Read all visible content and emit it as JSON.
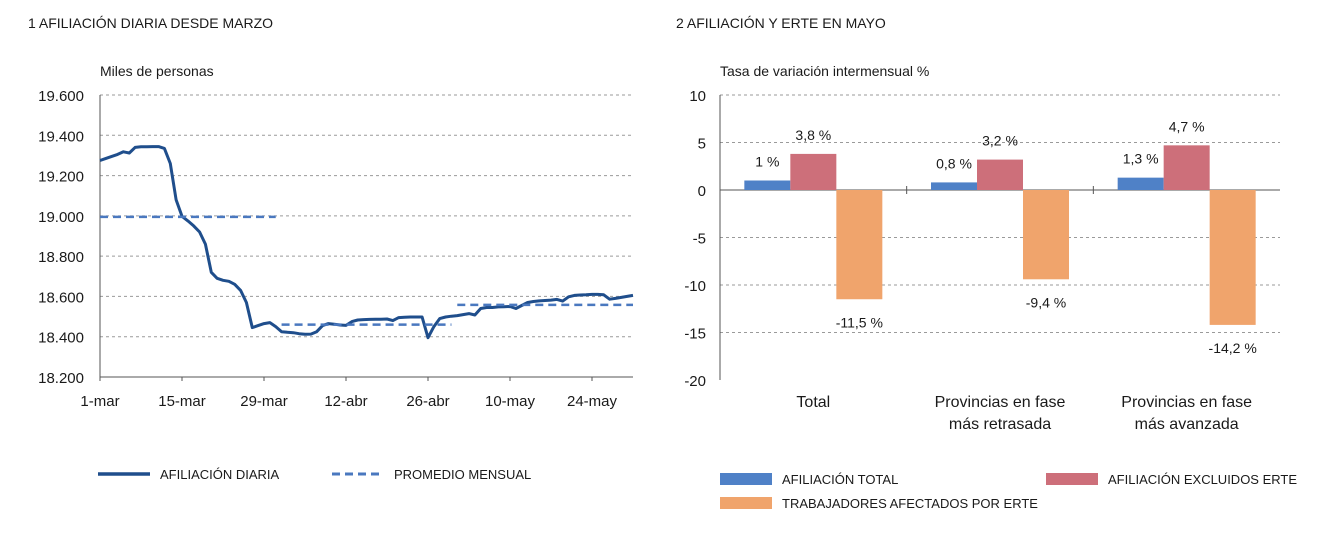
{
  "chart_data": [
    {
      "type": "line",
      "title": "1  AFILIACIÓN DIARIA DESDE MARZO",
      "ylabel": "Miles de personas",
      "ylim": [
        18200,
        19600
      ],
      "yticks": [
        18200,
        18400,
        18600,
        18800,
        19000,
        19200,
        19400,
        19600
      ],
      "ytick_labels": [
        "18.200",
        "18.400",
        "18.600",
        "18.800",
        "19.000",
        "19.200",
        "19.400",
        "19.600"
      ],
      "xlim": [
        0,
        91
      ],
      "xticks": [
        0,
        14,
        28,
        42,
        56,
        70,
        84
      ],
      "xtick_labels": [
        "1-mar",
        "15-mar",
        "29-mar",
        "12-abr",
        "26-abr",
        "10-may",
        "24-may"
      ],
      "grid": true,
      "series": [
        {
          "name": "AFILIACIÓN DIARIA",
          "color": "#1f4e8c",
          "x": [
            0,
            1,
            2,
            3,
            4,
            5,
            6,
            7,
            8,
            9,
            10,
            11,
            12,
            13,
            14,
            15,
            16,
            17,
            18,
            19,
            20,
            21,
            22,
            23,
            24,
            25,
            26,
            27,
            28,
            29,
            30,
            31,
            32,
            33,
            34,
            35,
            36,
            37,
            38,
            39,
            40,
            41,
            42,
            43,
            44,
            45,
            46,
            47,
            48,
            49,
            50,
            51,
            52,
            53,
            54,
            55,
            56,
            57,
            58,
            59,
            60,
            61,
            62,
            63,
            64,
            65,
            66,
            67,
            68,
            69,
            70,
            71,
            72,
            73,
            74,
            75,
            76,
            77,
            78,
            79,
            80,
            81,
            82,
            83,
            84,
            85,
            86,
            87,
            88,
            89,
            90,
            91
          ],
          "y": [
            19275,
            19285,
            19295,
            19305,
            19318,
            19312,
            19340,
            19343,
            19343,
            19344,
            19344,
            19335,
            19260,
            19080,
            18998,
            18975,
            18950,
            18920,
            18860,
            18720,
            18690,
            18680,
            18675,
            18660,
            18630,
            18570,
            18445,
            18455,
            18465,
            18470,
            18450,
            18425,
            18422,
            18420,
            18415,
            18412,
            18413,
            18425,
            18455,
            18465,
            18462,
            18458,
            18456,
            18475,
            18483,
            18485,
            18486,
            18487,
            18487,
            18488,
            18480,
            18495,
            18497,
            18498,
            18498,
            18498,
            18395,
            18450,
            18490,
            18498,
            18502,
            18505,
            18510,
            18515,
            18508,
            18540,
            18545,
            18545,
            18548,
            18549,
            18550,
            18540,
            18555,
            18570,
            18575,
            18578,
            18580,
            18582,
            18585,
            18577,
            18598,
            18605,
            18607,
            18608,
            18610,
            18610,
            18608,
            18586,
            18590,
            18595,
            18600,
            18605
          ]
        },
        {
          "name": "PROMEDIO MENSUAL",
          "color": "#4a78bf",
          "dashed": true,
          "segments": [
            {
              "x": [
                0,
                30
              ],
              "y": 18995
            },
            {
              "x": [
                31,
                60
              ],
              "y": 18460
            },
            {
              "x": [
                61,
                91
              ],
              "y": 18558
            }
          ]
        }
      ],
      "legend": [
        "AFILIACIÓN DIARIA",
        "PROMEDIO MENSUAL"
      ],
      "legend_position": "bottom"
    },
    {
      "type": "bar",
      "title": "2  AFILIACIÓN Y ERTE EN MAYO",
      "ylabel": "Tasa de variación intermensual %",
      "ylim": [
        -20,
        10
      ],
      "yticks": [
        -20,
        -15,
        -10,
        -5,
        0,
        5,
        10
      ],
      "ytick_labels": [
        "-20",
        "-15",
        "-10",
        "-5",
        "0",
        "5",
        "10"
      ],
      "grid": true,
      "categories": [
        [
          "Total"
        ],
        [
          "Provincias en fase",
          "más retrasada"
        ],
        [
          "Provincias en fase",
          "más avanzada"
        ]
      ],
      "series": [
        {
          "name": "AFILIACIÓN TOTAL",
          "color": "#4f81c7",
          "values": [
            1.0,
            0.8,
            1.3
          ],
          "labels": [
            "1 %",
            "0,8 %",
            "1,3 %"
          ]
        },
        {
          "name": "AFILIACIÓN EXCLUIDOS ERTE",
          "color": "#cd6f7a",
          "values": [
            3.8,
            3.2,
            4.7
          ],
          "labels": [
            "3,8 %",
            "3,2 %",
            "4,7 %"
          ]
        },
        {
          "name": "TRABAJADORES AFECTADOS POR ERTE",
          "color": "#f0a46c",
          "values": [
            -11.5,
            -9.4,
            -14.2
          ],
          "labels": [
            "-11,5 %",
            "-9,4 %",
            "-14,2 %"
          ]
        }
      ],
      "legend_position": "bottom"
    }
  ]
}
